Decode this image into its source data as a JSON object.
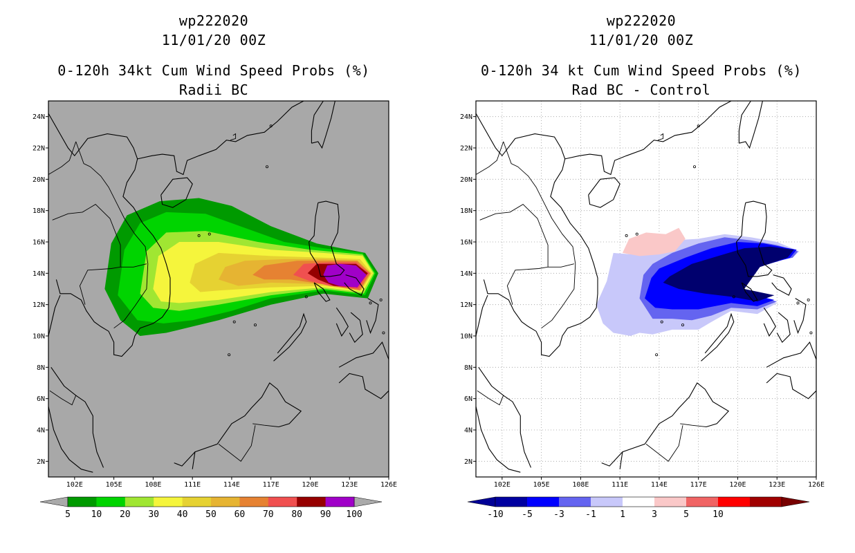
{
  "panels": [
    {
      "id": "left",
      "header": {
        "line1": "wp222020",
        "line2": "11/01/20 00Z",
        "line3": "0-120h 34kt Cum Wind Speed Probs (%)",
        "line4": "Radii BC"
      },
      "background": "#a8a8a8",
      "colorbar": {
        "colors": [
          "#009a00",
          "#00d400",
          "#a0e632",
          "#f5f53c",
          "#e6d232",
          "#e6b432",
          "#e68232",
          "#f05050",
          "#960000",
          "#a000c8"
        ],
        "labels": [
          "5",
          "10",
          "20",
          "30",
          "40",
          "50",
          "60",
          "70",
          "80",
          "90",
          "100"
        ],
        "end_left": "#aaaaaa",
        "end_right": "#aaaaaa"
      },
      "contours": [
        {
          "level": "5",
          "color": "#009a00"
        },
        {
          "level": "10",
          "color": "#00d400"
        },
        {
          "level": "20",
          "color": "#a0e632"
        },
        {
          "level": "30",
          "color": "#f5f53c"
        },
        {
          "level": "40",
          "color": "#e6d232"
        },
        {
          "level": "50",
          "color": "#e6b432"
        },
        {
          "level": "60",
          "color": "#e68232"
        },
        {
          "level": "70",
          "color": "#f05050"
        },
        {
          "level": "80",
          "color": "#960000"
        },
        {
          "level": "90",
          "color": "#a000c8"
        }
      ]
    },
    {
      "id": "right",
      "header": {
        "line1": "wp222020",
        "line2": "11/01/20 00Z",
        "line3": "0-120h 34 kt Cum Wind Speed Probs (%)",
        "line4": "Rad BC - Control"
      },
      "background": "#ffffff",
      "colorbar": {
        "colors": [
          "#0000a0",
          "#0000ff",
          "#6464f0",
          "#c8c8fa",
          "#ffffff",
          "#fac8c8",
          "#f06464",
          "#ff0000",
          "#a00000"
        ],
        "labels": [
          "-10",
          "-5",
          "-3",
          "-1",
          "1",
          "3",
          "5",
          "10"
        ],
        "end_left": "#000096",
        "end_right": "#780000"
      },
      "contours": [
        {
          "level": "-1",
          "color": "#c8c8fa"
        },
        {
          "level": "-3",
          "color": "#6464f0"
        },
        {
          "level": "-5",
          "color": "#0000ff"
        },
        {
          "level": "-10",
          "color": "#00006e"
        },
        {
          "level": "1",
          "color": "#fac8c8"
        }
      ]
    }
  ],
  "chart_data": {
    "type": "heatmap",
    "map_region": "South China Sea / Western Pacific",
    "xticks": [
      "102E",
      "105E",
      "108E",
      "111E",
      "114E",
      "117E",
      "120E",
      "123E",
      "126E"
    ],
    "yticks": [
      "2N",
      "4N",
      "6N",
      "8N",
      "10N",
      "12N",
      "14N",
      "16N",
      "18N",
      "20N",
      "22N",
      "24N"
    ],
    "xlim": [
      100.0,
      126.0
    ],
    "ylim": [
      1.0,
      25.0
    ],
    "grid": "dotted lat/lon grid on right panel"
  }
}
